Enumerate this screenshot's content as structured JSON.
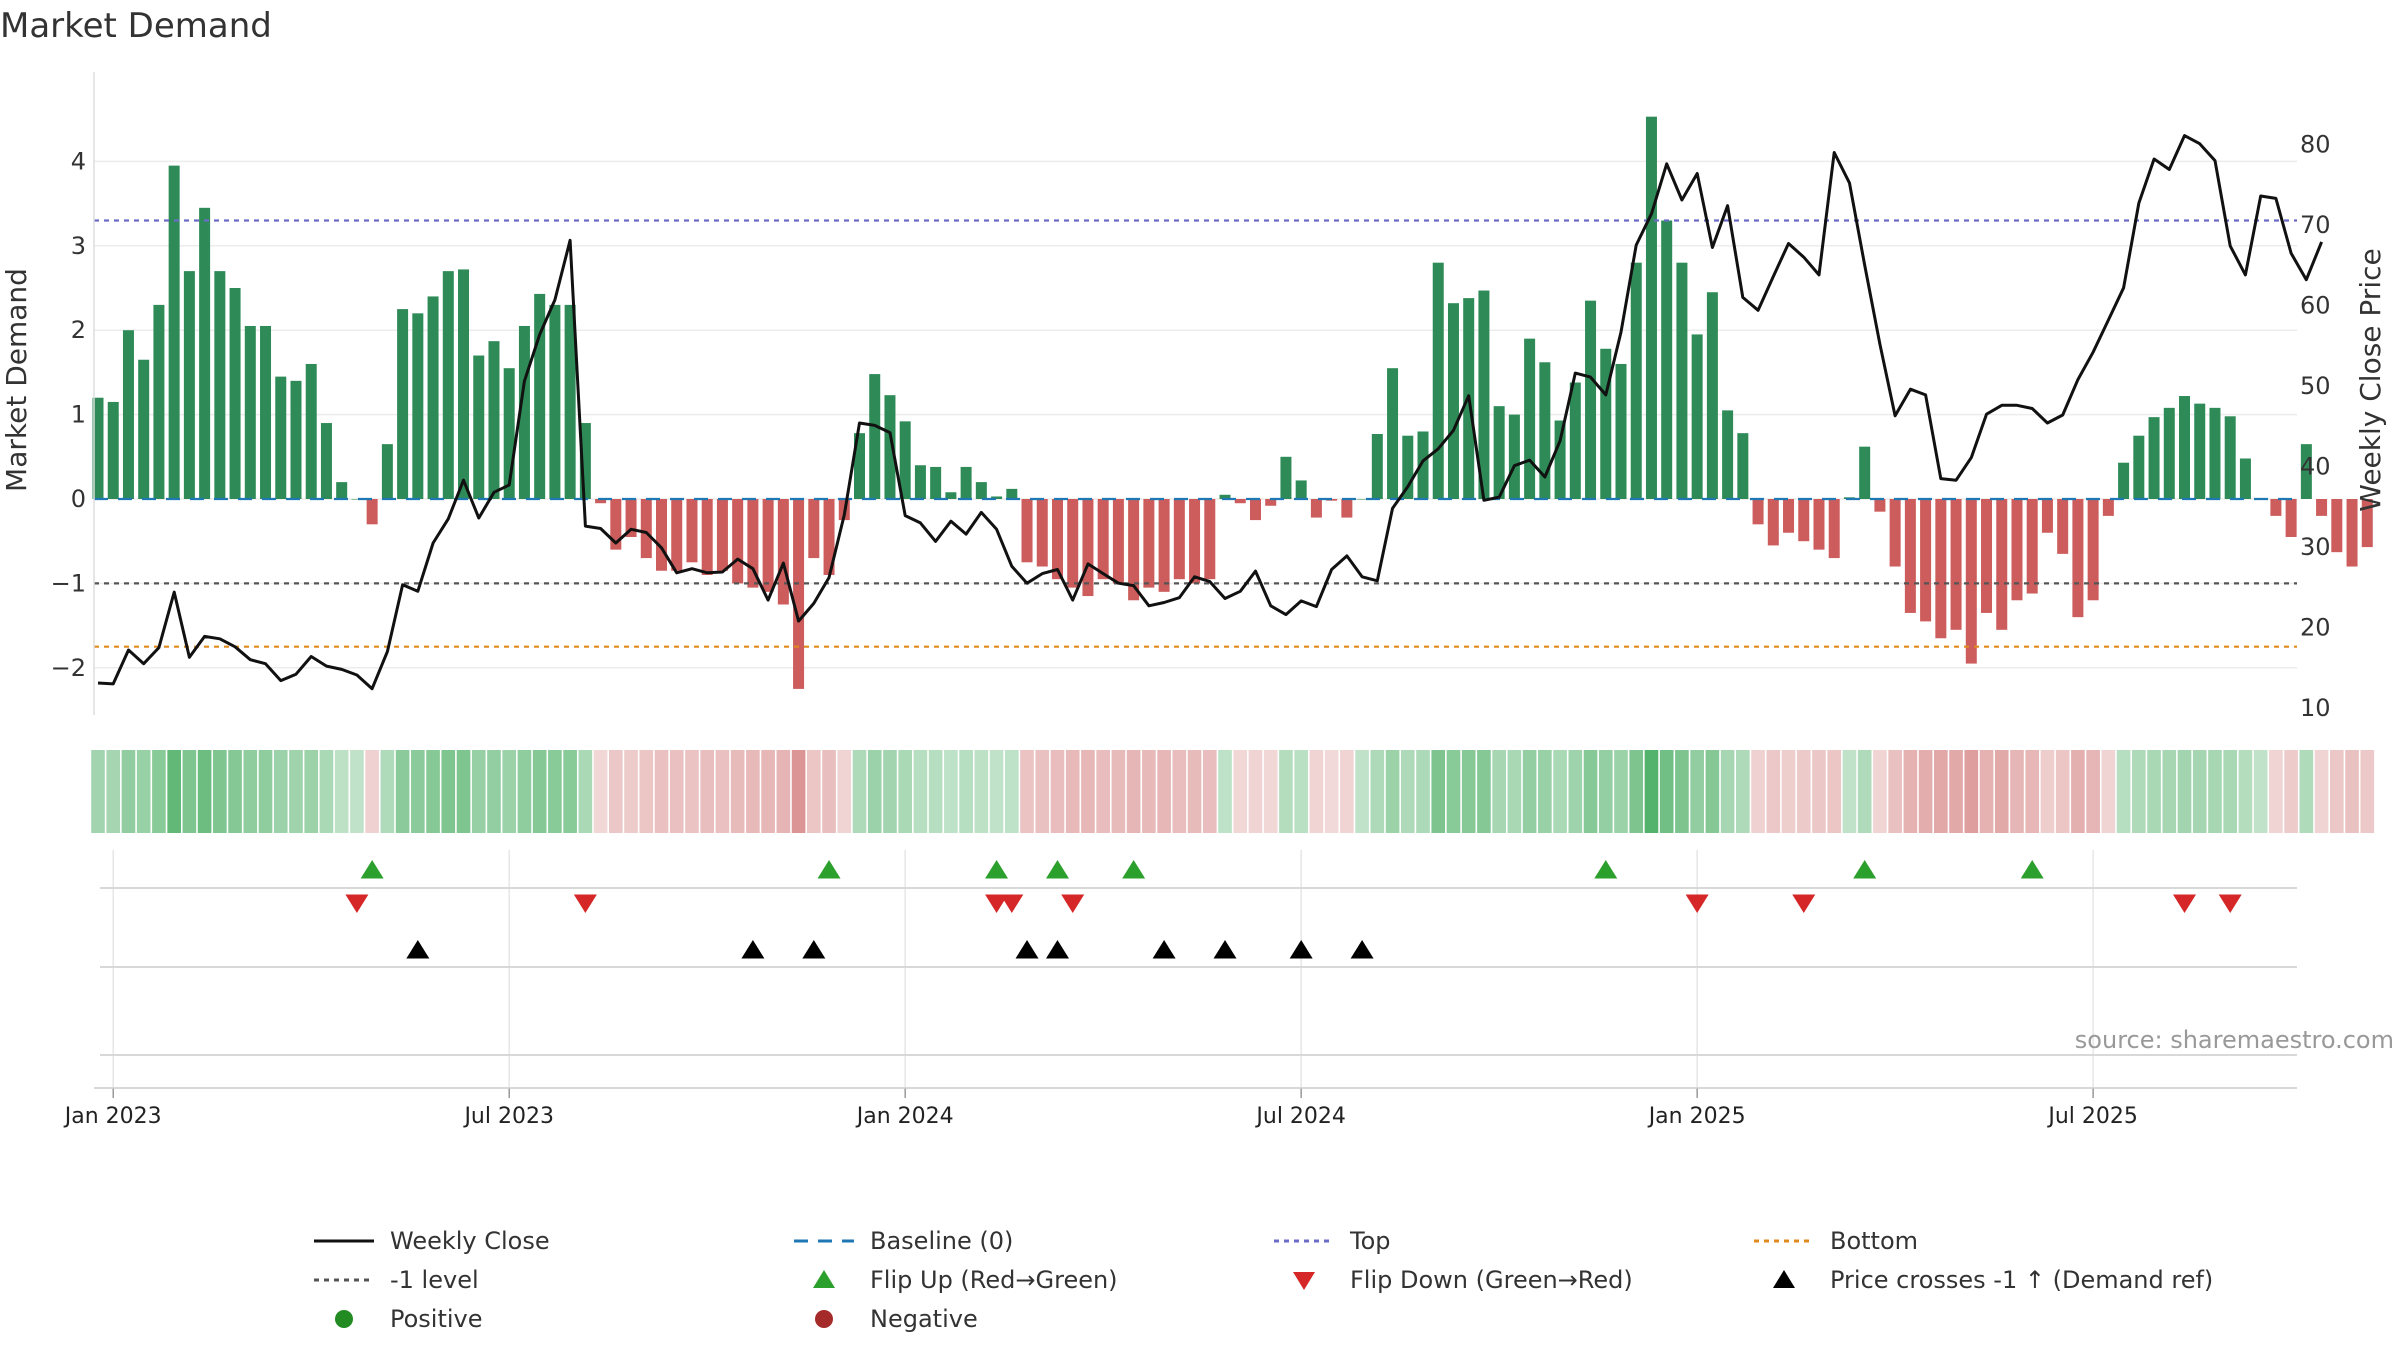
{
  "title": "Market Demand",
  "source": "source: sharemaestro.com",
  "colors": {
    "positive": "#2e8b57",
    "negative": "#cd5c5c",
    "price": "#111111",
    "baseline": "#1f77b4",
    "top": "#6b6bc8",
    "bottom": "#e08a1e",
    "minus1": "#555555",
    "flip_up": "#2ca02c",
    "flip_down": "#d62728",
    "cross": "#000000"
  },
  "legend": {
    "weekly_close": "Weekly Close",
    "baseline": "Baseline (0)",
    "top": "Top",
    "bottom": "Bottom",
    "minus1": "-1 level",
    "flip_up": "Flip Up (Red→Green)",
    "flip_down": "Flip Down (Green→Red)",
    "cross": "Price crosses -1 ↑ (Demand ref)",
    "positive": "Positive",
    "negative": "Negative"
  },
  "chart_data": {
    "type": "bar",
    "title": "Market Demand",
    "ylabel": "Market Demand",
    "y2label": "Weekly Close Price",
    "ylim": [
      -2.6,
      5.0
    ],
    "y2lim": [
      8.6,
      91.7
    ],
    "yticks": [
      -2,
      -1,
      0,
      1,
      2,
      3,
      4
    ],
    "yticklabels": [
      "−2",
      "−1",
      "0",
      "1",
      "2",
      "3",
      "4"
    ],
    "y2ticks": [
      10,
      20,
      30,
      40,
      50,
      60,
      70,
      80
    ],
    "xticks": [
      1,
      27,
      53,
      79,
      105,
      131
    ],
    "xticklabels": [
      "Jan 2023",
      "Jul 2023",
      "Jan 2024",
      "Jul 2024",
      "Jan 2025",
      "Jul 2025"
    ],
    "top_level": 3.3,
    "bottom_level": -1.75,
    "minus1_level": -1,
    "demand": [
      1.2,
      1.15,
      2.0,
      1.65,
      2.3,
      3.95,
      2.7,
      3.45,
      2.7,
      2.5,
      2.05,
      2.05,
      1.45,
      1.4,
      1.6,
      0.9,
      0.2,
      0.0,
      -0.3,
      0.65,
      2.25,
      2.2,
      2.4,
      2.7,
      2.72,
      1.7,
      1.87,
      1.55,
      2.05,
      2.43,
      2.3,
      2.3,
      0.9,
      -0.05,
      -0.6,
      -0.45,
      -0.7,
      -0.85,
      -0.85,
      -0.75,
      -0.9,
      -0.85,
      -1.0,
      -1.05,
      -1.1,
      -1.25,
      -2.25,
      -0.7,
      -0.9,
      -0.25,
      0.78,
      1.48,
      1.23,
      0.92,
      0.4,
      0.38,
      0.08,
      0.38,
      0.2,
      0.03,
      0.12,
      -0.75,
      -0.8,
      -0.95,
      -1.05,
      -1.15,
      -0.95,
      -1.0,
      -1.2,
      -1.05,
      -1.1,
      -0.95,
      -1.0,
      -0.95,
      0.05,
      -0.05,
      -0.25,
      -0.08,
      0.5,
      0.22,
      -0.22,
      -0.02,
      -0.22,
      0.0,
      0.77,
      1.55,
      0.75,
      0.8,
      2.8,
      2.32,
      2.38,
      2.47,
      1.1,
      1.0,
      1.9,
      1.62,
      0.93,
      1.38,
      2.35,
      1.78,
      1.6,
      2.8,
      4.53,
      3.3,
      2.8,
      1.95,
      2.45,
      1.05,
      0.78,
      -0.3,
      -0.55,
      -0.4,
      -0.5,
      -0.6,
      -0.7,
      0.02,
      0.62,
      -0.15,
      -0.8,
      -1.35,
      -1.45,
      -1.65,
      -1.55,
      -1.95,
      -1.35,
      -1.55,
      -1.2,
      -1.12,
      -0.4,
      -0.65,
      -1.4,
      -1.2,
      -0.2,
      0.43,
      0.75,
      0.97,
      1.08,
      1.22,
      1.13,
      1.08,
      0.98,
      0.48,
      0.0,
      -0.2,
      -0.45,
      0.65,
      -0.2,
      -0.63,
      -0.8,
      -0.57
    ],
    "close": [
      13.1,
      13.0,
      17.2,
      15.5,
      17.5,
      24.4,
      16.3,
      18.9,
      18.6,
      17.6,
      16.0,
      15.5,
      13.4,
      14.2,
      16.4,
      15.2,
      14.8,
      14.1,
      12.4,
      17.0,
      25.3,
      24.5,
      30.5,
      33.5,
      38.3,
      33.6,
      36.8,
      37.7,
      50.6,
      56.4,
      60.7,
      68.1,
      32.6,
      32.3,
      30.5,
      32.2,
      31.8,
      29.9,
      26.8,
      27.3,
      26.8,
      26.9,
      28.5,
      27.3,
      23.4,
      28.0,
      20.8,
      23.0,
      26.2,
      34.0,
      45.4,
      45.1,
      44.2,
      33.9,
      33.0,
      30.7,
      33.2,
      31.6,
      34.3,
      32.2,
      27.6,
      25.5,
      26.7,
      27.2,
      23.4,
      27.9,
      26.7,
      25.5,
      25.2,
      22.7,
      23.1,
      23.7,
      26.3,
      25.7,
      23.6,
      24.5,
      27.0,
      22.7,
      21.6,
      23.3,
      22.6,
      27.2,
      28.9,
      26.3,
      25.8,
      34.8,
      37.5,
      40.7,
      42.2,
      44.5,
      48.8,
      35.8,
      36.2,
      40.1,
      40.8,
      38.7,
      43.2,
      51.6,
      51.1,
      48.9,
      56.7,
      67.5,
      71.4,
      77.6,
      73.1,
      76.4,
      67.2,
      72.4,
      61.0,
      59.4,
      63.6,
      67.7,
      66.0,
      63.8,
      79.0,
      75.2,
      65.0,
      55.2,
      46.3,
      49.6,
      48.9,
      38.5,
      38.3,
      41.1,
      46.5,
      47.6,
      47.6,
      47.2,
      45.4,
      46.4,
      50.8,
      54.2,
      58.2,
      62.2,
      72.7,
      78.2,
      76.9,
      81.1,
      80.1,
      78.0,
      67.4,
      63.8,
      73.6,
      73.3,
      66.5,
      63.2,
      67.9
    ],
    "flip_up": [
      18,
      48,
      59,
      63,
      68,
      99,
      116,
      127
    ],
    "flip_down": [
      17,
      32,
      59,
      60,
      64,
      105,
      112,
      137,
      140
    ],
    "price_crosses": [
      21,
      43,
      47,
      61,
      63,
      70,
      74,
      79,
      83
    ]
  }
}
